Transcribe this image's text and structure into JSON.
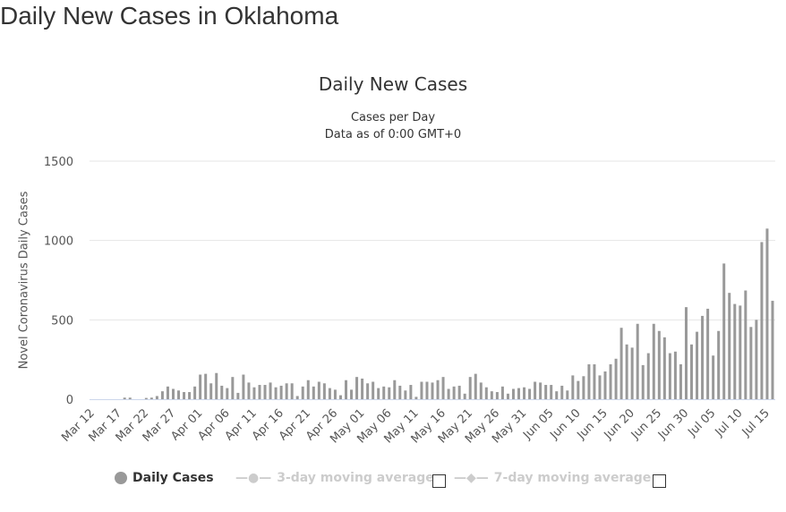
{
  "page_title": "Daily New Cases in Oklahoma",
  "chart_data": {
    "type": "bar",
    "title": "Daily New Cases",
    "subtitle": [
      "Cases per Day",
      "Data as of 0:00 GMT+0"
    ],
    "ylabel": "Novel Coronavirus Daily Cases",
    "xlabel": "",
    "ylim": [
      0,
      1500
    ],
    "yticks": [
      0,
      500,
      1000,
      1500
    ],
    "grid": true,
    "legend_position": "bottom",
    "bar_color": "#999999",
    "categories": [
      "Mar 12",
      "Mar 13",
      "Mar 14",
      "Mar 15",
      "Mar 16",
      "Mar 17",
      "Mar 18",
      "Mar 19",
      "Mar 20",
      "Mar 21",
      "Mar 22",
      "Mar 23",
      "Mar 24",
      "Mar 25",
      "Mar 26",
      "Mar 27",
      "Mar 28",
      "Mar 29",
      "Mar 30",
      "Mar 31",
      "Apr 01",
      "Apr 02",
      "Apr 03",
      "Apr 04",
      "Apr 05",
      "Apr 06",
      "Apr 07",
      "Apr 08",
      "Apr 09",
      "Apr 10",
      "Apr 11",
      "Apr 12",
      "Apr 13",
      "Apr 14",
      "Apr 15",
      "Apr 16",
      "Apr 17",
      "Apr 18",
      "Apr 19",
      "Apr 20",
      "Apr 21",
      "Apr 22",
      "Apr 23",
      "Apr 24",
      "Apr 25",
      "Apr 26",
      "Apr 27",
      "Apr 28",
      "Apr 29",
      "Apr 30",
      "May 01",
      "May 02",
      "May 03",
      "May 04",
      "May 05",
      "May 06",
      "May 07",
      "May 08",
      "May 09",
      "May 10",
      "May 11",
      "May 12",
      "May 13",
      "May 14",
      "May 15",
      "May 16",
      "May 17",
      "May 18",
      "May 19",
      "May 20",
      "May 21",
      "May 22",
      "May 23",
      "May 24",
      "May 25",
      "May 26",
      "May 27",
      "May 28",
      "May 29",
      "May 30",
      "May 31",
      "Jun 01",
      "Jun 02",
      "Jun 03",
      "Jun 04",
      "Jun 05",
      "Jun 06",
      "Jun 07",
      "Jun 08",
      "Jun 09",
      "Jun 10",
      "Jun 11",
      "Jun 12",
      "Jun 13",
      "Jun 14",
      "Jun 15",
      "Jun 16",
      "Jun 17",
      "Jun 18",
      "Jun 19",
      "Jun 20",
      "Jun 21",
      "Jun 22",
      "Jun 23",
      "Jun 24",
      "Jun 25",
      "Jun 26",
      "Jun 27",
      "Jun 28",
      "Jun 29",
      "Jun 30",
      "Jul 01",
      "Jul 02",
      "Jul 03",
      "Jul 04",
      "Jul 05",
      "Jul 06",
      "Jul 07",
      "Jul 08",
      "Jul 09",
      "Jul 10",
      "Jul 11",
      "Jul 12",
      "Jul 13",
      "Jul 14",
      "Jul 15",
      "Jul 16"
    ],
    "series": [
      {
        "name": "Daily Cases",
        "values": [
          0,
          0,
          0,
          0,
          0,
          0,
          10,
          10,
          0,
          0,
          8,
          10,
          20,
          50,
          80,
          65,
          55,
          45,
          45,
          80,
          155,
          160,
          100,
          165,
          85,
          70,
          140,
          40,
          155,
          105,
          75,
          90,
          90,
          105,
          75,
          85,
          100,
          100,
          20,
          80,
          120,
          80,
          110,
          100,
          70,
          60,
          25,
          120,
          60,
          140,
          130,
          100,
          110,
          70,
          80,
          75,
          120,
          85,
          55,
          90,
          15,
          110,
          110,
          105,
          120,
          140,
          65,
          80,
          85,
          35,
          140,
          160,
          105,
          75,
          50,
          45,
          80,
          35,
          65,
          70,
          75,
          65,
          110,
          105,
          90,
          90,
          50,
          85,
          55,
          150,
          115,
          145,
          220,
          220,
          150,
          175,
          220,
          255,
          450,
          345,
          325,
          475,
          215,
          290,
          475,
          430,
          390,
          290,
          300,
          220,
          580,
          345,
          425,
          525,
          570,
          275,
          430,
          855,
          670,
          600,
          590,
          685,
          455,
          500,
          990,
          1075,
          620
        ]
      }
    ],
    "legend": [
      "Daily Cases",
      "3-day moving average",
      "7-day moving average"
    ]
  }
}
